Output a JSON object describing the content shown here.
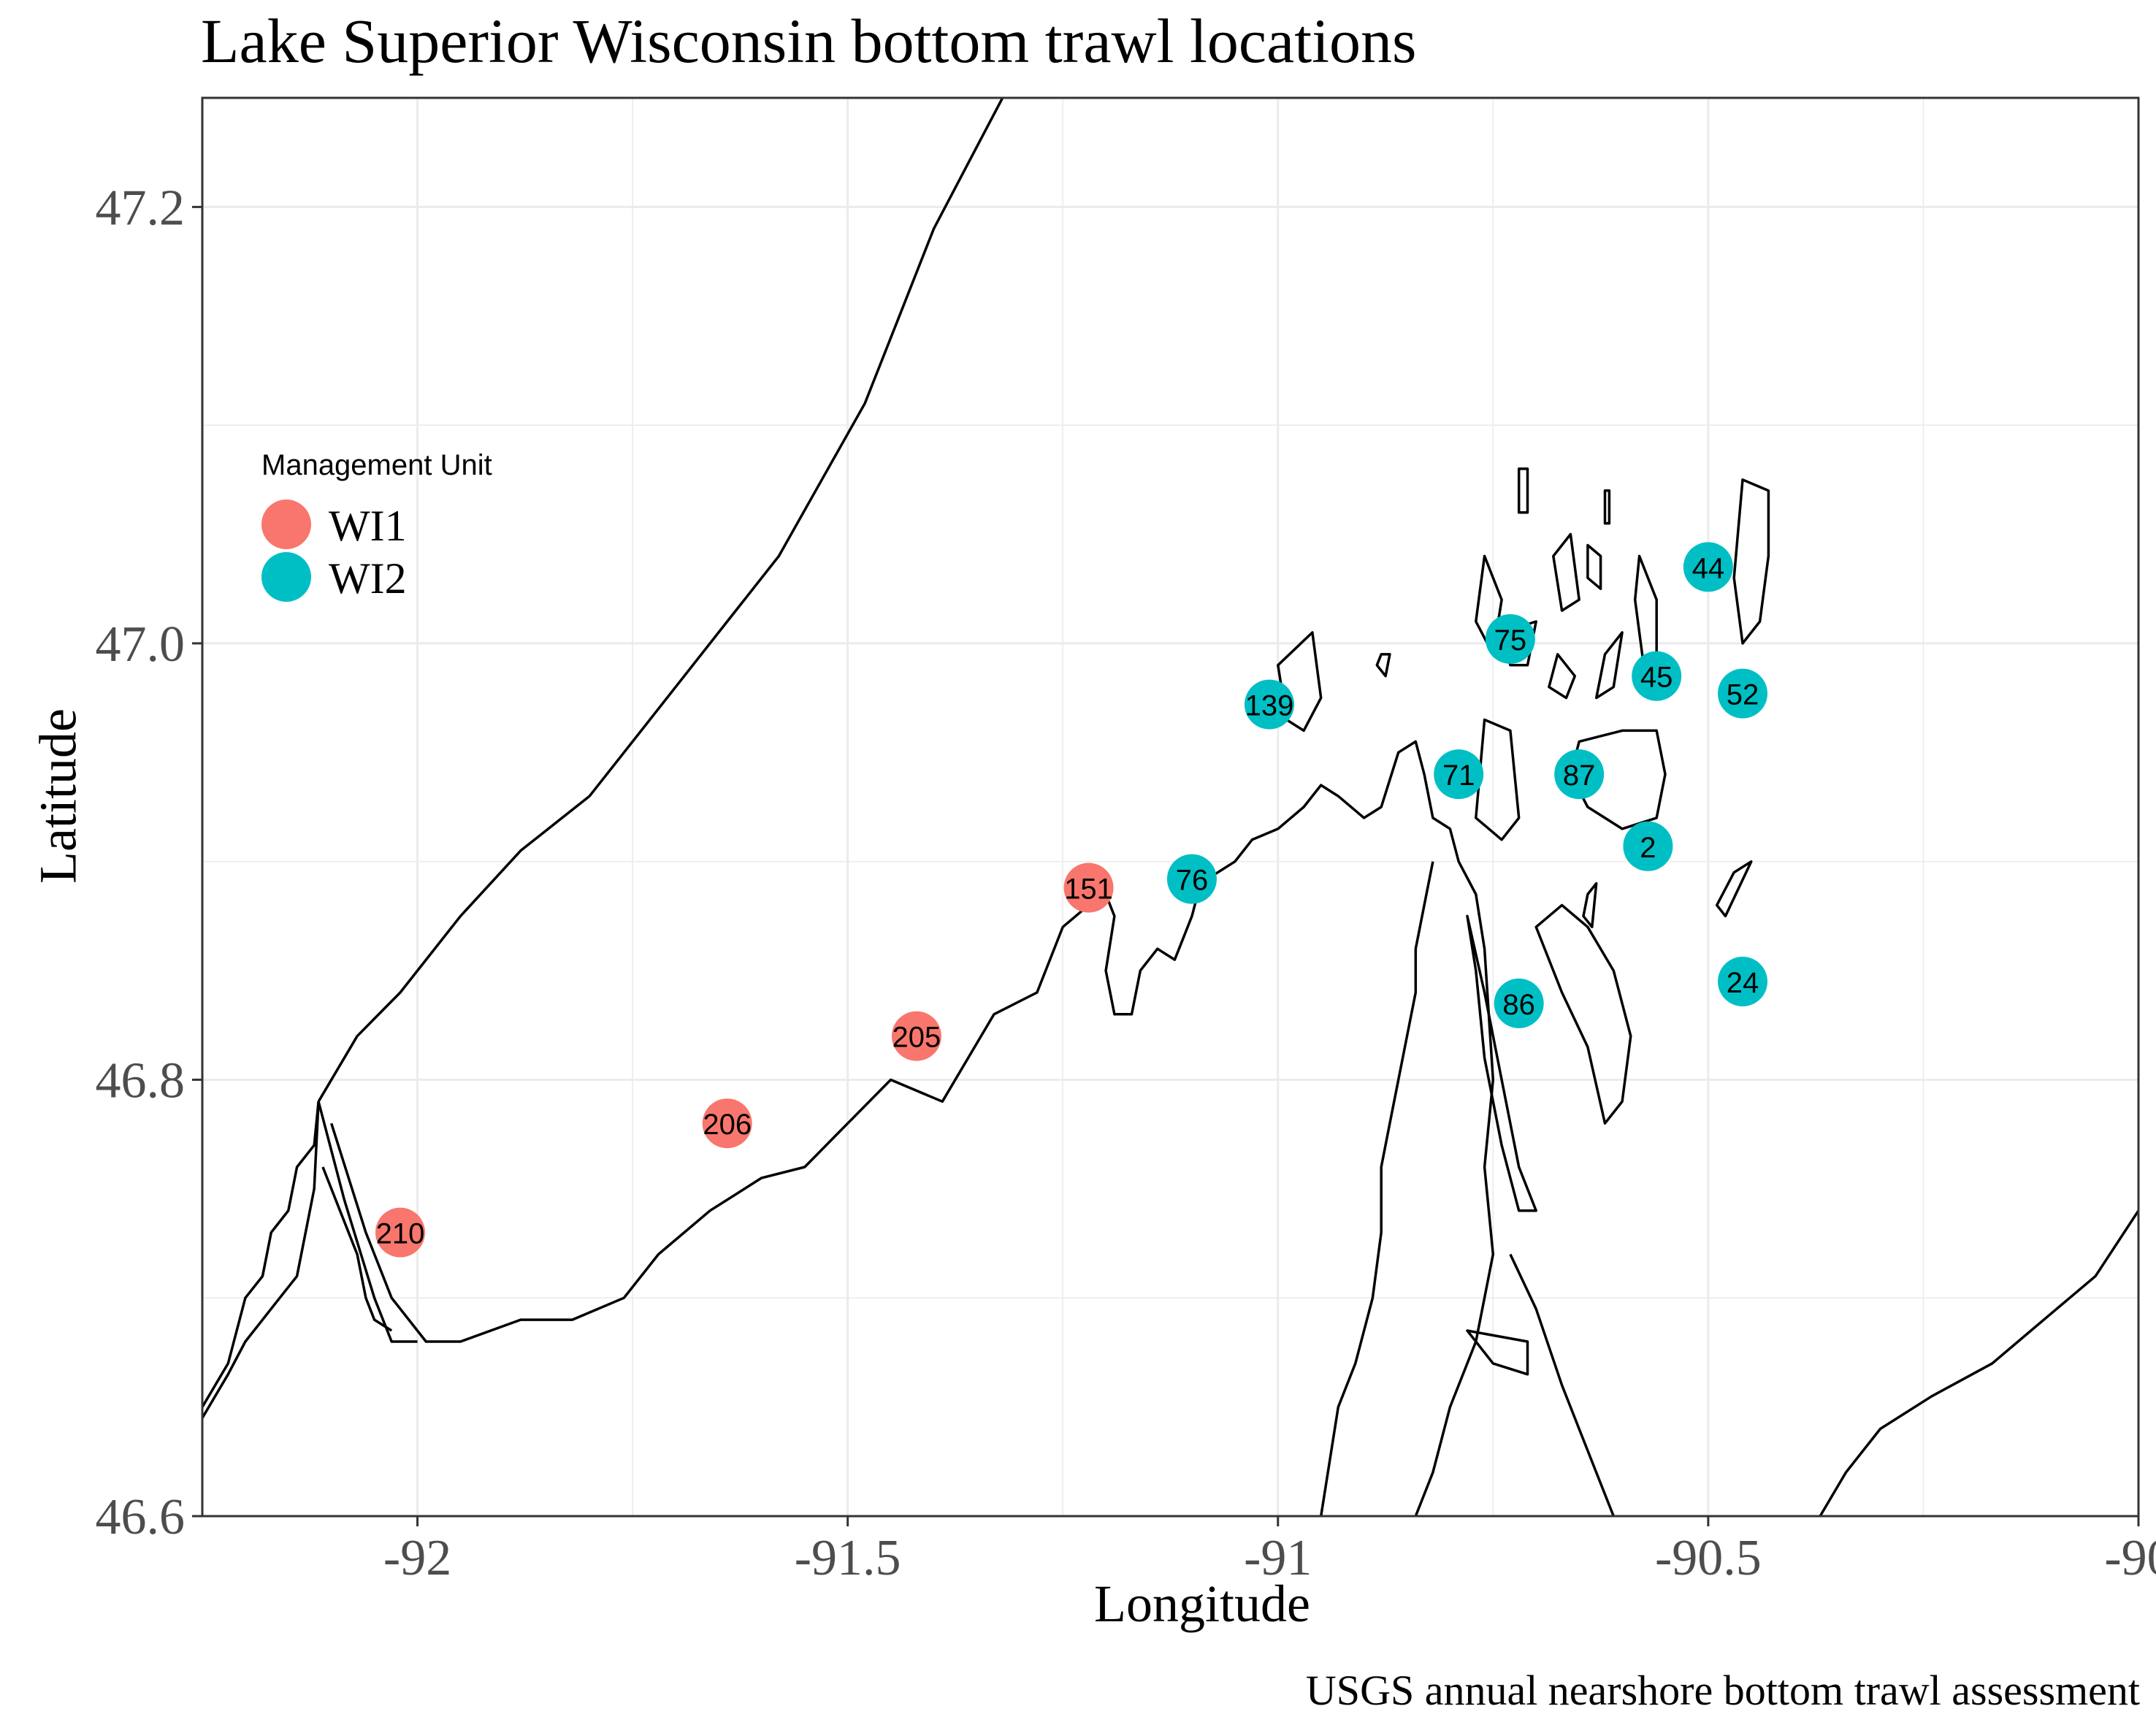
{
  "title": "Lake Superior Wisconsin bottom trawl locations",
  "caption": "USGS annual nearshore bottom trawl assessment",
  "axes": {
    "x": {
      "label": "Longitude",
      "range": [
        -92.25,
        -90.0
      ],
      "ticks": [
        -92,
        -91.5,
        -91,
        -90.5,
        -90
      ],
      "tick_labels": [
        "-92",
        "-91.5",
        "-91",
        "-90.5",
        "-90"
      ]
    },
    "y": {
      "label": "Latitude",
      "range": [
        46.6,
        47.25
      ],
      "ticks": [
        46.6,
        46.8,
        47.0,
        47.2
      ],
      "tick_labels": [
        "46.6",
        "46.8",
        "47.0",
        "47.2"
      ]
    },
    "grid": true
  },
  "legend": {
    "title": "Management Unit",
    "placement": "top-left inside",
    "items": [
      {
        "label": "WI1",
        "color": "#F8766D"
      },
      {
        "label": "WI2",
        "color": "#00BFC4"
      }
    ]
  },
  "chart_data": {
    "type": "scatter",
    "title": "Lake Superior Wisconsin bottom trawl locations",
    "xlabel": "Longitude",
    "ylabel": "Latitude",
    "xlim": [
      -92.25,
      -90.0
    ],
    "ylim": [
      46.6,
      47.25
    ],
    "series": [
      {
        "name": "WI1",
        "color": "#F8766D",
        "points": [
          {
            "label": "210",
            "x": -92.02,
            "y": 46.73
          },
          {
            "label": "206",
            "x": -91.64,
            "y": 46.78
          },
          {
            "label": "205",
            "x": -91.42,
            "y": 46.82
          },
          {
            "label": "151",
            "x": -91.22,
            "y": 46.888
          }
        ]
      },
      {
        "name": "WI2",
        "color": "#00BFC4",
        "points": [
          {
            "label": "76",
            "x": -91.1,
            "y": 46.892
          },
          {
            "label": "139",
            "x": -91.01,
            "y": 46.972
          },
          {
            "label": "71",
            "x": -90.79,
            "y": 46.94
          },
          {
            "label": "75",
            "x": -90.73,
            "y": 47.002
          },
          {
            "label": "87",
            "x": -90.65,
            "y": 46.94
          },
          {
            "label": "45",
            "x": -90.56,
            "y": 46.985
          },
          {
            "label": "44",
            "x": -90.5,
            "y": 47.035
          },
          {
            "label": "52",
            "x": -90.46,
            "y": 46.977
          },
          {
            "label": "2",
            "x": -90.57,
            "y": 46.907
          },
          {
            "label": "86",
            "x": -90.72,
            "y": 46.835
          },
          {
            "label": "24",
            "x": -90.46,
            "y": 46.845
          }
        ]
      }
    ]
  },
  "basemap": {
    "coastline_color": "#000000",
    "shapes": [
      {
        "name": "minnesota-north-shore",
        "closed": false,
        "points": [
          [
            -92.115,
            46.79
          ],
          [
            -92.07,
            46.82
          ],
          [
            -92.02,
            46.84
          ],
          [
            -91.95,
            46.875
          ],
          [
            -91.88,
            46.905
          ],
          [
            -91.8,
            46.93
          ],
          [
            -91.72,
            46.97
          ],
          [
            -91.64,
            47.01
          ],
          [
            -91.58,
            47.04
          ],
          [
            -91.53,
            47.075
          ],
          [
            -91.48,
            47.11
          ],
          [
            -91.44,
            47.15
          ],
          [
            -91.4,
            47.19
          ],
          [
            -91.36,
            47.22
          ],
          [
            -91.32,
            47.25
          ]
        ]
      },
      {
        "name": "wisconsin-south-shore",
        "closed": false,
        "points": [
          [
            -92.1,
            46.78
          ],
          [
            -92.06,
            46.73
          ],
          [
            -92.03,
            46.7
          ],
          [
            -91.99,
            46.68
          ],
          [
            -91.95,
            46.68
          ],
          [
            -91.88,
            46.69
          ],
          [
            -91.82,
            46.69
          ],
          [
            -91.76,
            46.7
          ],
          [
            -91.72,
            46.72
          ],
          [
            -91.66,
            46.74
          ],
          [
            -91.6,
            46.755
          ],
          [
            -91.55,
            46.76
          ],
          [
            -91.5,
            46.78
          ],
          [
            -91.45,
            46.8
          ],
          [
            -91.39,
            46.79
          ],
          [
            -91.36,
            46.81
          ],
          [
            -91.33,
            46.83
          ],
          [
            -91.28,
            46.84
          ],
          [
            -91.25,
            46.87
          ],
          [
            -91.22,
            46.88
          ],
          [
            -91.2,
            46.885
          ],
          [
            -91.19,
            46.875
          ],
          [
            -91.2,
            46.85
          ],
          [
            -91.19,
            46.83
          ],
          [
            -91.17,
            46.83
          ],
          [
            -91.16,
            46.85
          ],
          [
            -91.14,
            46.86
          ],
          [
            -91.12,
            46.855
          ],
          [
            -91.11,
            46.865
          ],
          [
            -91.1,
            46.875
          ],
          [
            -91.09,
            46.89
          ],
          [
            -91.07,
            46.895
          ],
          [
            -91.05,
            46.9
          ],
          [
            -91.03,
            46.91
          ],
          [
            -91.0,
            46.915
          ],
          [
            -90.97,
            46.925
          ],
          [
            -90.95,
            46.935
          ],
          [
            -90.93,
            46.93
          ],
          [
            -90.9,
            46.92
          ],
          [
            -90.88,
            46.925
          ],
          [
            -90.86,
            46.95
          ],
          [
            -90.84,
            46.955
          ],
          [
            -90.83,
            46.94
          ],
          [
            -90.82,
            46.92
          ],
          [
            -90.8,
            46.915
          ],
          [
            -90.79,
            46.9
          ],
          [
            -90.77,
            46.885
          ],
          [
            -90.76,
            46.86
          ],
          [
            -90.755,
            46.83
          ],
          [
            -90.75,
            46.8
          ],
          [
            -90.76,
            46.76
          ],
          [
            -90.75,
            46.72
          ],
          [
            -90.77,
            46.68
          ],
          [
            -90.8,
            46.65
          ],
          [
            -90.82,
            46.62
          ],
          [
            -90.84,
            46.6
          ]
        ]
      },
      {
        "name": "chequamegon-bay-east-shore",
        "closed": false,
        "points": [
          [
            -90.95,
            46.6
          ],
          [
            -90.94,
            46.625
          ],
          [
            -90.93,
            46.65
          ],
          [
            -90.91,
            46.67
          ],
          [
            -90.89,
            46.7
          ],
          [
            -90.88,
            46.73
          ],
          [
            -90.88,
            46.76
          ],
          [
            -90.87,
            46.78
          ],
          [
            -90.86,
            46.8
          ],
          [
            -90.85,
            46.82
          ],
          [
            -90.84,
            46.84
          ],
          [
            -90.84,
            46.86
          ],
          [
            -90.83,
            46.88
          ],
          [
            -90.82,
            46.9
          ]
        ]
      },
      {
        "name": "madeline-island",
        "closed": true,
        "points": [
          [
            -90.7,
            46.87
          ],
          [
            -90.67,
            46.84
          ],
          [
            -90.64,
            46.815
          ],
          [
            -90.62,
            46.78
          ],
          [
            -90.6,
            46.79
          ],
          [
            -90.59,
            46.82
          ],
          [
            -90.61,
            46.85
          ],
          [
            -90.64,
            46.87
          ],
          [
            -90.67,
            46.88
          ]
        ]
      },
      {
        "name": "long-island",
        "closed": true,
        "points": [
          [
            -90.78,
            46.875
          ],
          [
            -90.76,
            46.84
          ],
          [
            -90.74,
            46.8
          ],
          [
            -90.72,
            46.76
          ],
          [
            -90.7,
            46.74
          ],
          [
            -90.72,
            46.74
          ],
          [
            -90.74,
            46.77
          ],
          [
            -90.76,
            46.81
          ],
          [
            -90.77,
            46.85
          ]
        ]
      },
      {
        "name": "oak-island",
        "closed": true,
        "points": [
          [
            -90.76,
            46.965
          ],
          [
            -90.73,
            46.96
          ],
          [
            -90.72,
            46.92
          ],
          [
            -90.74,
            46.91
          ],
          [
            -90.77,
            46.92
          ]
        ]
      },
      {
        "name": "stockton-island",
        "closed": true,
        "points": [
          [
            -90.65,
            46.955
          ],
          [
            -90.6,
            46.96
          ],
          [
            -90.56,
            46.96
          ],
          [
            -90.55,
            46.94
          ],
          [
            -90.56,
            46.92
          ],
          [
            -90.6,
            46.915
          ],
          [
            -90.64,
            46.925
          ],
          [
            -90.66,
            46.94
          ]
        ]
      },
      {
        "name": "outer-island",
        "closed": true,
        "points": [
          [
            -90.46,
            47.075
          ],
          [
            -90.43,
            47.07
          ],
          [
            -90.43,
            47.04
          ],
          [
            -90.44,
            47.01
          ],
          [
            -90.46,
            47.0
          ],
          [
            -90.47,
            47.03
          ]
        ]
      },
      {
        "name": "sand-island",
        "closed": true,
        "points": [
          [
            -91.0,
            46.99
          ],
          [
            -90.96,
            47.005
          ],
          [
            -90.95,
            46.975
          ],
          [
            -90.97,
            46.96
          ],
          [
            -90.99,
            46.965
          ]
        ]
      },
      {
        "name": "bear-island",
        "closed": true,
        "points": [
          [
            -90.76,
            47.04
          ],
          [
            -90.74,
            47.02
          ],
          [
            -90.75,
            46.995
          ],
          [
            -90.77,
            47.01
          ]
        ]
      },
      {
        "name": "york-island",
        "closed": true,
        "points": [
          [
            -90.74,
            47.005
          ],
          [
            -90.7,
            47.01
          ],
          [
            -90.71,
            46.99
          ],
          [
            -90.73,
            46.99
          ]
        ]
      },
      {
        "name": "rocky-island",
        "closed": true,
        "points": [
          [
            -90.68,
            47.04
          ],
          [
            -90.66,
            47.05
          ],
          [
            -90.65,
            47.02
          ],
          [
            -90.67,
            47.015
          ]
        ]
      },
      {
        "name": "otter-island",
        "closed": true,
        "points": [
          [
            -90.64,
            47.045
          ],
          [
            -90.625,
            47.04
          ],
          [
            -90.625,
            47.025
          ],
          [
            -90.64,
            47.03
          ]
        ]
      },
      {
        "name": "manitou-island",
        "closed": true,
        "points": [
          [
            -90.58,
            47.04
          ],
          [
            -90.56,
            47.02
          ],
          [
            -90.56,
            46.985
          ],
          [
            -90.575,
            46.99
          ],
          [
            -90.585,
            47.02
          ]
        ]
      },
      {
        "name": "devils-island",
        "closed": true,
        "points": [
          [
            -90.72,
            47.08
          ],
          [
            -90.71,
            47.08
          ],
          [
            -90.71,
            47.06
          ],
          [
            -90.72,
            47.06
          ]
        ]
      },
      {
        "name": "north-twin-island",
        "closed": true,
        "points": [
          [
            -90.62,
            47.07
          ],
          [
            -90.615,
            47.07
          ],
          [
            -90.615,
            47.055
          ],
          [
            -90.62,
            47.055
          ]
        ]
      },
      {
        "name": "ironwood-island",
        "closed": true,
        "points": [
          [
            -90.62,
            46.995
          ],
          [
            -90.6,
            47.005
          ],
          [
            -90.61,
            46.98
          ],
          [
            -90.63,
            46.975
          ]
        ]
      },
      {
        "name": "hermit-island",
        "closed": true,
        "points": [
          [
            -90.665,
            46.975
          ],
          [
            -90.655,
            46.985
          ],
          [
            -90.675,
            46.995
          ],
          [
            -90.685,
            46.98
          ]
        ]
      },
      {
        "name": "michigan-island",
        "closed": true,
        "points": [
          [
            -90.47,
            46.895
          ],
          [
            -90.45,
            46.9
          ],
          [
            -90.48,
            46.875
          ],
          [
            -90.49,
            46.88
          ]
        ]
      },
      {
        "name": "basswood-island",
        "closed": true,
        "points": [
          [
            -90.64,
            46.885
          ],
          [
            -90.63,
            46.89
          ],
          [
            -90.635,
            46.87
          ],
          [
            -90.645,
            46.875
          ]
        ]
      },
      {
        "name": "eagle-island",
        "closed": true,
        "points": [
          [
            -90.88,
            46.995
          ],
          [
            -90.87,
            46.995
          ],
          [
            -90.875,
            46.985
          ],
          [
            -90.885,
            46.99
          ]
        ]
      },
      {
        "name": "big-bay-spit",
        "closed": true,
        "points": [
          [
            -90.78,
            46.685
          ],
          [
            -90.71,
            46.68
          ],
          [
            -90.71,
            46.665
          ],
          [
            -90.75,
            46.67
          ]
        ]
      },
      {
        "name": "michigan-shore",
        "closed": false,
        "points": [
          [
            -90.37,
            46.6
          ],
          [
            -90.34,
            46.62
          ],
          [
            -90.3,
            46.64
          ],
          [
            -90.24,
            46.655
          ],
          [
            -90.17,
            46.67
          ],
          [
            -90.11,
            46.69
          ],
          [
            -90.05,
            46.71
          ],
          [
            -90.0,
            46.74
          ]
        ]
      },
      {
        "name": "montreal-river",
        "closed": false,
        "points": [
          [
            -90.73,
            46.72
          ],
          [
            -90.7,
            46.695
          ],
          [
            -90.67,
            46.66
          ],
          [
            -90.64,
            46.63
          ],
          [
            -90.61,
            46.6
          ]
        ]
      },
      {
        "name": "st-louis-bay-1",
        "closed": false,
        "points": [
          [
            -92.115,
            46.79
          ],
          [
            -92.12,
            46.77
          ],
          [
            -92.14,
            46.76
          ],
          [
            -92.15,
            46.74
          ],
          [
            -92.17,
            46.73
          ],
          [
            -92.18,
            46.71
          ],
          [
            -92.2,
            46.7
          ],
          [
            -92.22,
            46.67
          ],
          [
            -92.25,
            46.65
          ]
        ]
      },
      {
        "name": "st-louis-bay-2",
        "closed": false,
        "points": [
          [
            -92.115,
            46.79
          ],
          [
            -92.12,
            46.75
          ],
          [
            -92.13,
            46.73
          ],
          [
            -92.14,
            46.71
          ],
          [
            -92.16,
            46.7
          ],
          [
            -92.18,
            46.69
          ],
          [
            -92.2,
            46.68
          ],
          [
            -92.22,
            46.665
          ],
          [
            -92.25,
            46.645
          ]
        ]
      },
      {
        "name": "st-louis-bay-3",
        "closed": false,
        "points": [
          [
            -92.11,
            46.76
          ],
          [
            -92.09,
            46.74
          ],
          [
            -92.07,
            46.72
          ],
          [
            -92.06,
            46.7
          ],
          [
            -92.05,
            46.69
          ],
          [
            -92.03,
            46.685
          ]
        ]
      },
      {
        "name": "superior-entry",
        "closed": false,
        "points": [
          [
            -92.115,
            46.79
          ],
          [
            -92.085,
            46.745
          ],
          [
            -92.05,
            46.7
          ],
          [
            -92.03,
            46.68
          ],
          [
            -92.0,
            46.68
          ]
        ]
      }
    ]
  }
}
